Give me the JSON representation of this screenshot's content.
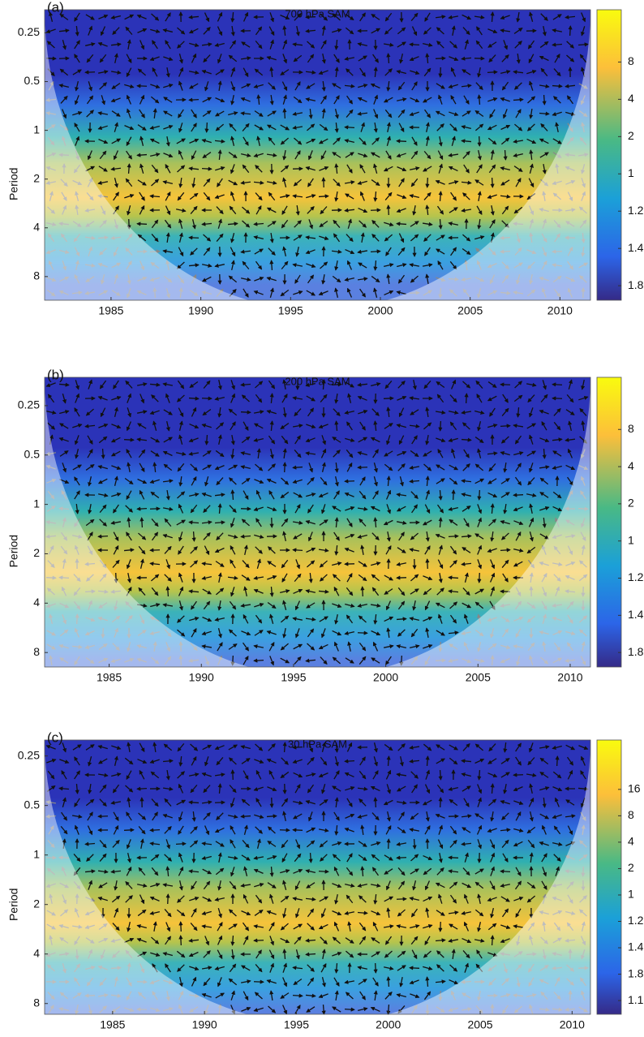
{
  "chart_data": [
    {
      "type": "wavelet",
      "panel_label": "(a)",
      "title": "700 hPa SAM",
      "ylabel": "Period",
      "xlim": [
        1981.3,
        2011.7
      ],
      "xticks": [
        1985,
        1990,
        1995,
        2000,
        2005,
        2010
      ],
      "ylim": [
        0.18,
        11.2
      ],
      "yticks": [
        0.25,
        0.5,
        1,
        2,
        4,
        8
      ],
      "log_y": true,
      "colorbar_labels": [
        "8",
        "4",
        "2",
        "1",
        "1.2",
        "1.4",
        "1.8"
      ],
      "highlight": {
        "ylim": [
          1.82,
          2.19
        ],
        "color": "#e8322b"
      }
    },
    {
      "type": "wavelet",
      "panel_label": "(b)",
      "title": "200 hPa SAM",
      "ylabel": "Period",
      "xlim": [
        1981.5,
        2011.1
      ],
      "xticks": [
        1985,
        1990,
        1995,
        2000,
        2005,
        2010
      ],
      "ylim": [
        0.168,
        9.8
      ],
      "yticks": [
        0.25,
        0.5,
        1,
        2,
        4,
        8
      ],
      "log_y": true,
      "colorbar_labels": [
        "8",
        "4",
        "2",
        "1",
        "1.2",
        "1.4",
        "1.8"
      ],
      "highlight": {
        "ylim": [
          1.82,
          2.19
        ],
        "color": "#e8322b"
      }
    },
    {
      "type": "wavelet",
      "panel_label": "(c)",
      "title": "30 hPa SAM",
      "ylabel": "Period",
      "xlim": [
        1981.3,
        2011.0
      ],
      "xticks": [
        1985,
        1990,
        1995,
        2000,
        2005,
        2010
      ],
      "ylim": [
        0.2,
        9.3
      ],
      "yticks": [
        0.25,
        0.5,
        1,
        2,
        4,
        8
      ],
      "log_y": true,
      "colorbar_labels": [
        "16",
        "8",
        "4",
        "2",
        "1",
        "1.2",
        "1.4",
        "1.8",
        "1.16"
      ],
      "highlight": {
        "ylim": [
          1.82,
          2.19
        ],
        "color": "#e8322b"
      }
    }
  ]
}
